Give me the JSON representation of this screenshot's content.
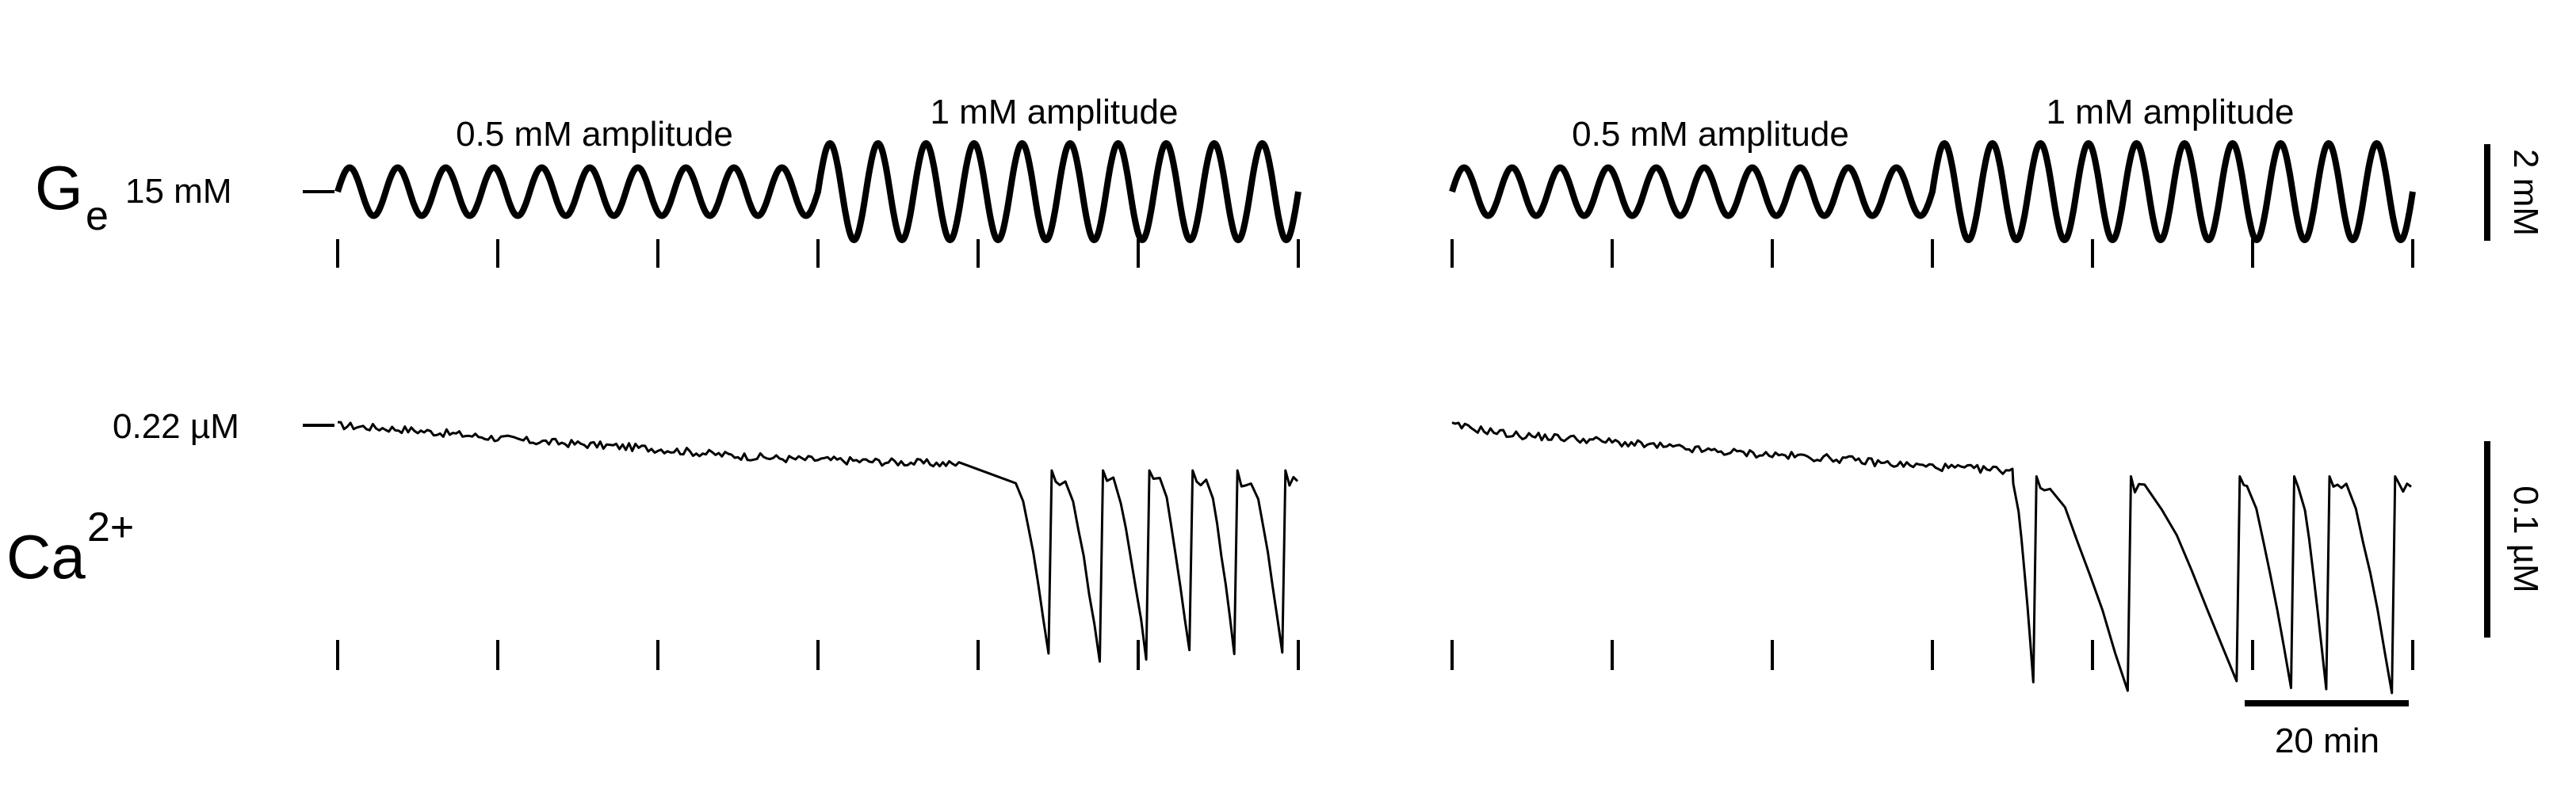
{
  "labels": {
    "ge_main": "G",
    "ge_sub": "e",
    "ge_baseline": "15 mM",
    "ca_main": "Ca",
    "ca_sup": "2+",
    "ca_baseline": "0.22 µM"
  },
  "scale_bars": {
    "ge": "2 mM",
    "ca": "0.1 µM",
    "time": "20 min"
  },
  "chart_data": {
    "type": "line",
    "x_unit": "min",
    "tick_interval_min": 10,
    "panels": [
      {
        "id": "left",
        "epochs": [
          "0.5 mM amplitude",
          "1 mM amplitude"
        ],
        "x_range": [
          0,
          60
        ],
        "ge": {
          "baseline": 15,
          "unit": "mM",
          "period_min": 3,
          "segments": [
            {
              "label": "0.5 mM amplitude",
              "from": 0,
              "to": 30,
              "amplitude": 0.5
            },
            {
              "label": "1 mM amplitude",
              "from": 30,
              "to": 60,
              "amplitude": 1.0
            }
          ]
        },
        "ca": {
          "unit": "µM",
          "baseline": 0.22,
          "x": [
            0,
            4,
            8,
            12,
            16,
            20,
            24,
            28,
            32,
            36,
            39
          ],
          "y": [
            0.22,
            0.218,
            0.215,
            0.212,
            0.21,
            0.208,
            0.205,
            0.203,
            0.202,
            0.201,
            0.2
          ],
          "pulses": [
            {
              "start": 42.5,
              "nadir": 44.4,
              "min": 0.105
            },
            {
              "start": 45.6,
              "nadir": 47.6,
              "min": 0.1
            },
            {
              "start": 48.6,
              "nadir": 50.5,
              "min": 0.102
            },
            {
              "start": 51.5,
              "nadir": 53.2,
              "min": 0.105
            },
            {
              "start": 54.4,
              "nadir": 56.0,
              "min": 0.104
            },
            {
              "start": 57.2,
              "nadir": 59.0,
              "min": 0.105
            }
          ]
        }
      },
      {
        "id": "right",
        "epochs": [
          "0.5 mM amplitude",
          "1 mM amplitude"
        ],
        "x_range": [
          0,
          60
        ],
        "ge": {
          "baseline": 15,
          "unit": "mM",
          "period_min": 3,
          "segments": [
            {
              "label": "0.5 mM amplitude",
              "from": 0,
              "to": 30,
              "amplitude": 0.5
            },
            {
              "label": "1 mM amplitude",
              "from": 30,
              "to": 60,
              "amplitude": 1.0
            }
          ]
        },
        "ca": {
          "unit": "µM",
          "baseline": 0.22,
          "x": [
            0,
            4,
            8,
            12,
            16,
            20,
            24,
            28,
            32,
            35
          ],
          "y": [
            0.22,
            0.215,
            0.213,
            0.21,
            0.207,
            0.205,
            0.203,
            0.2,
            0.198,
            0.197
          ],
          "pulses": [
            {
              "start": 35.2,
              "nadir": 36.3,
              "min": 0.09
            },
            {
              "start": 37.5,
              "nadir": 42.2,
              "min": 0.085
            },
            {
              "start": 43.4,
              "nadir": 49.0,
              "min": 0.09
            },
            {
              "start": 49.8,
              "nadir": 52.4,
              "min": 0.085
            },
            {
              "start": 53.0,
              "nadir": 54.6,
              "min": 0.085
            },
            {
              "start": 56.0,
              "nadir": 58.7,
              "min": 0.085
            }
          ]
        }
      }
    ]
  }
}
